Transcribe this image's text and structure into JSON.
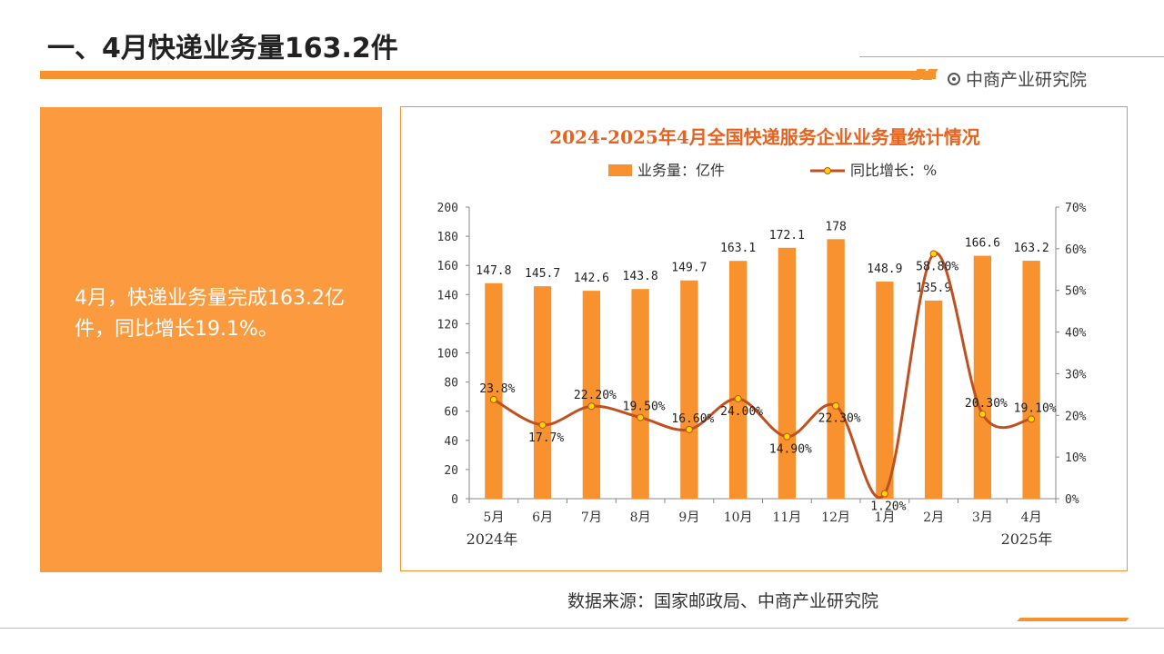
{
  "header": {
    "title": "一、4月快递业务量163.2件",
    "brand": "中商产业研究院"
  },
  "summary": {
    "text": "4月，快递业务量完成163.2亿件，同比增长19.1%。"
  },
  "source": "数据来源：国家邮政局、中商产业研究院",
  "colors": {
    "accent": "#f7922e",
    "bar": "#f7922e",
    "line": "#c0501f",
    "marker": "#ffd700",
    "title": "#e8621e"
  },
  "chart_data": {
    "type": "bar",
    "title": "2024-2025年4月全国快递服务企业业务量统计情况",
    "categories": [
      "5月",
      "6月",
      "7月",
      "8月",
      "9月",
      "10月",
      "11月",
      "12月",
      "1月",
      "2月",
      "3月",
      "4月"
    ],
    "year_labels": {
      "start": "2024年",
      "end": "2025年"
    },
    "series": [
      {
        "name": "业务量：亿件",
        "type": "bar",
        "axis": "left",
        "values": [
          147.8,
          145.7,
          142.6,
          143.8,
          149.7,
          163.1,
          172.1,
          178,
          148.9,
          135.9,
          166.6,
          163.2
        ],
        "labels": [
          "147.8",
          "145.7",
          "142.6",
          "143.8",
          "149.7",
          "163.1",
          "172.1",
          "178",
          "148.9",
          "135.9",
          "166.6",
          "163.2"
        ]
      },
      {
        "name": "同比增长：%",
        "type": "line",
        "axis": "right",
        "values": [
          23.8,
          17.7,
          22.2,
          19.5,
          16.6,
          24.0,
          14.9,
          22.3,
          1.2,
          58.8,
          20.3,
          19.1
        ],
        "labels": [
          "23.8%",
          "17.7%",
          "22.20%",
          "19.50%",
          "16.60%",
          "24.00%",
          "14.90%",
          "22.30%",
          "1.20%",
          "58.80%",
          "20.30%",
          "19.10%"
        ]
      }
    ],
    "ylim": [
      0,
      200
    ],
    "y_ticks": [
      "0",
      "20",
      "40",
      "60",
      "80",
      "100",
      "120",
      "140",
      "160",
      "180",
      "200"
    ],
    "y2lim": [
      0,
      70
    ],
    "y2_ticks": [
      "0%",
      "10%",
      "20%",
      "30%",
      "40%",
      "50%",
      "60%",
      "70%"
    ],
    "legend": "top",
    "grid": false
  }
}
